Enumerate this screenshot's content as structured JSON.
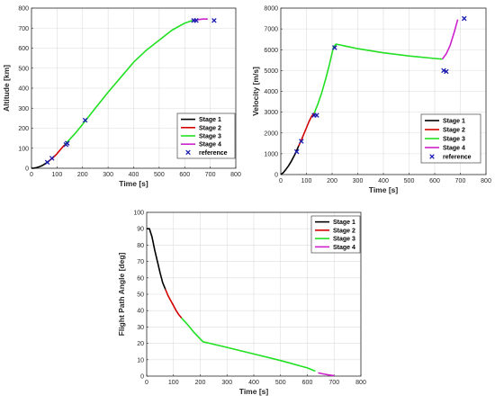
{
  "colors": {
    "stage1": "#000000",
    "stage2": "#d40000",
    "stage3": "#22e022",
    "stage4": "#cc22cc",
    "reference": "#1a1ab0"
  },
  "chart_data": [
    {
      "type": "line",
      "xlabel": "Time [s]",
      "ylabel": "Altitude [km]",
      "xlim": [
        0,
        800
      ],
      "ylim": [
        0,
        800
      ],
      "xticks": [
        "0",
        "100",
        "200",
        "300",
        "400",
        "500",
        "600",
        "700",
        "800"
      ],
      "yticks": [
        "0",
        "100",
        "200",
        "300",
        "400",
        "500",
        "600",
        "700",
        "800"
      ],
      "grid": true,
      "legend_position": "lower-right",
      "series": [
        {
          "name": "Stage 1",
          "color_key": "stage1",
          "x": [
            0,
            10,
            20,
            30,
            40,
            50,
            60,
            70
          ],
          "y": [
            0,
            1,
            3,
            7,
            12,
            20,
            28,
            38
          ]
        },
        {
          "name": "Stage 2",
          "color_key": "stage2",
          "x": [
            70,
            80,
            90,
            100,
            110,
            120,
            130
          ],
          "y": [
            38,
            48,
            60,
            73,
            88,
            103,
            117
          ]
        },
        {
          "name": "Stage 3",
          "color_key": "stage3",
          "x": [
            130,
            150,
            175,
            200,
            250,
            300,
            350,
            400,
            450,
            500,
            550,
            600,
            630
          ],
          "y": [
            117,
            145,
            180,
            220,
            300,
            380,
            455,
            530,
            590,
            640,
            690,
            725,
            738
          ]
        },
        {
          "name": "Stage 4",
          "color_key": "stage4",
          "x": [
            630,
            650,
            670,
            690
          ],
          "y": [
            738,
            742,
            745,
            745
          ]
        }
      ],
      "reference": {
        "name": "reference",
        "color_key": "reference",
        "x": [
          62,
          80,
          135,
          140,
          210,
          635,
          645,
          715
        ],
        "y": [
          30,
          50,
          118,
          125,
          240,
          738,
          738,
          738
        ]
      }
    },
    {
      "type": "line",
      "xlabel": "Time [s]",
      "ylabel": "Velocity [m/s]",
      "xlim": [
        0,
        800
      ],
      "ylim": [
        0,
        8000
      ],
      "xticks": [
        "0",
        "100",
        "200",
        "300",
        "400",
        "500",
        "600",
        "700",
        "800"
      ],
      "yticks": [
        "0",
        "1000",
        "2000",
        "3000",
        "4000",
        "5000",
        "6000",
        "7000",
        "8000"
      ],
      "grid": true,
      "legend_position": "lower-right",
      "series": [
        {
          "name": "Stage 1",
          "color_key": "stage1",
          "x": [
            0,
            10,
            20,
            30,
            40,
            50,
            60,
            70
          ],
          "y": [
            0,
            100,
            250,
            420,
            620,
            850,
            1100,
            1380
          ]
        },
        {
          "name": "Stage 2",
          "color_key": "stage2",
          "x": [
            70,
            80,
            90,
            100,
            110,
            120,
            130
          ],
          "y": [
            1380,
            1650,
            1950,
            2250,
            2550,
            2800,
            2950
          ]
        },
        {
          "name": "Stage 3",
          "color_key": "stage3",
          "x": [
            130,
            145,
            160,
            175,
            190,
            205,
            215,
            300,
            400,
            500,
            600,
            630
          ],
          "y": [
            2950,
            3400,
            3950,
            4600,
            5300,
            6100,
            6270,
            6050,
            5850,
            5700,
            5580,
            5550
          ]
        },
        {
          "name": "Stage 4",
          "color_key": "stage4",
          "x": [
            630,
            645,
            660,
            675,
            690
          ],
          "y": [
            5550,
            5800,
            6200,
            6800,
            7450
          ]
        }
      ],
      "reference": {
        "name": "reference",
        "color_key": "reference",
        "x": [
          62,
          80,
          130,
          140,
          210,
          635,
          645,
          715
        ],
        "y": [
          1100,
          1600,
          2850,
          2850,
          6100,
          5000,
          4950,
          7500
        ]
      }
    },
    {
      "type": "line",
      "xlabel": "Time [s]",
      "ylabel": "Flight Path Angle [deg]",
      "xlim": [
        0,
        800
      ],
      "ylim": [
        0,
        100
      ],
      "xticks": [
        "0",
        "100",
        "200",
        "300",
        "400",
        "500",
        "600",
        "700",
        "800"
      ],
      "yticks": [
        "0",
        "10",
        "20",
        "30",
        "40",
        "50",
        "60",
        "70",
        "80",
        "90",
        "100"
      ],
      "grid": true,
      "legend_position": "top-right",
      "series": [
        {
          "name": "Stage 1",
          "color_key": "stage1",
          "x": [
            0,
            10,
            20,
            30,
            40,
            50,
            60,
            70
          ],
          "y": [
            90,
            90,
            85,
            77,
            70,
            63,
            57,
            53
          ]
        },
        {
          "name": "Stage 2",
          "color_key": "stage2",
          "x": [
            70,
            80,
            90,
            100,
            110,
            120,
            130
          ],
          "y": [
            53,
            49,
            46,
            43,
            40,
            37.5,
            35.5
          ]
        },
        {
          "name": "Stage 3",
          "color_key": "stage3",
          "x": [
            130,
            150,
            175,
            210,
            300,
            400,
            500,
            600,
            630
          ],
          "y": [
            35.5,
            32,
            27,
            21,
            17.5,
            13.5,
            9.5,
            5,
            3
          ]
        },
        {
          "name": "Stage 4",
          "color_key": "stage4",
          "x": [
            640,
            660,
            680,
            700
          ],
          "y": [
            2,
            1.3,
            0.7,
            0.2
          ]
        }
      ]
    }
  ]
}
